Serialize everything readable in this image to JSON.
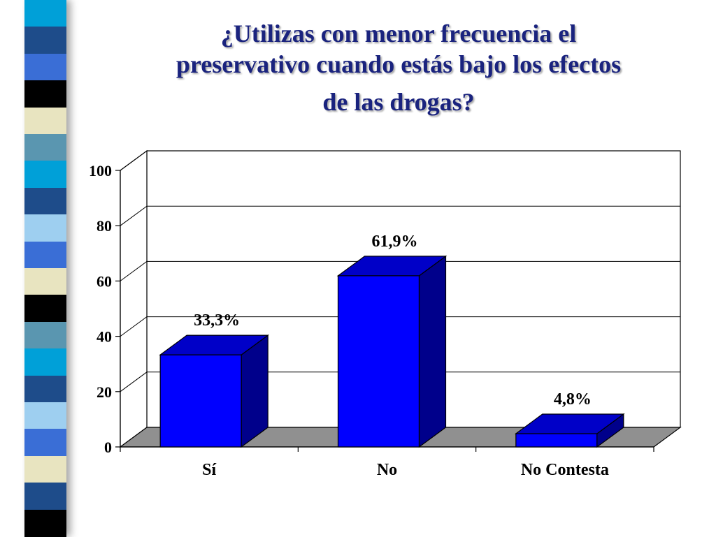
{
  "slide": {
    "title_lines": [
      "¿Utilizas con menor frecuencia el",
      "preservativo cuando estás bajo los efectos",
      "de las drogas?"
    ]
  },
  "stripe_colors": [
    "#00a0d8",
    "#1e4c8a",
    "#3a6ed6",
    "#000000",
    "#e8e4c0",
    "#5a96b0",
    "#00a0d8",
    "#1e4c8a",
    "#9ecff0",
    "#3a6ed6",
    "#e8e4c0",
    "#000000",
    "#5a96b0",
    "#00a0d8",
    "#1e4c8a",
    "#9ecff0",
    "#3a6ed6",
    "#e8e4c0",
    "#1e4c8a",
    "#000000"
  ],
  "chart_data": {
    "type": "bar",
    "title": "¿Utilizas con menor frecuencia el preservativo cuando estás bajo los efectos de las drogas?",
    "categories": [
      "Sí",
      "No",
      "No Contesta"
    ],
    "values": [
      33.3,
      61.9,
      4.8
    ],
    "data_labels": [
      "33,3%",
      "61,9%",
      "4,8%"
    ],
    "ylim": [
      0,
      100
    ],
    "yticks": [
      "0",
      "20",
      "40",
      "60",
      "80",
      "100"
    ],
    "ytick_values": [
      0,
      20,
      40,
      60,
      80,
      100
    ],
    "xlabel": "",
    "ylabel": "",
    "grid": true,
    "legend": "none",
    "style": "3d",
    "colors": {
      "bar_front": "#0000ff",
      "bar_side": "#00008b",
      "bar_top": "#0000c8",
      "floor": "#909090"
    }
  }
}
